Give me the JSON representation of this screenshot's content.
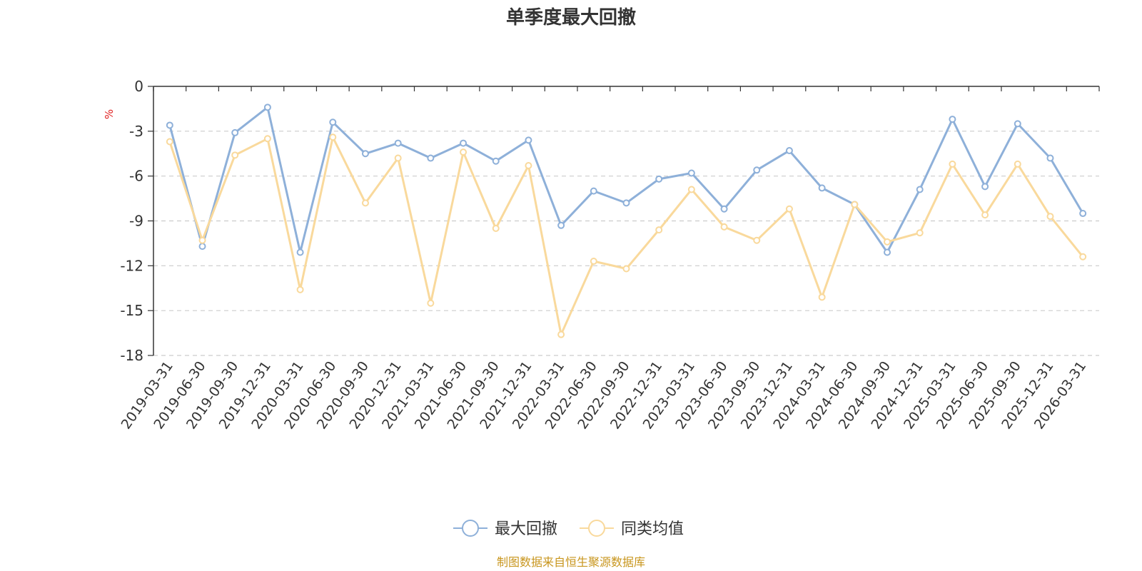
{
  "chart_data": {
    "type": "line",
    "title": "单季度最大回撤",
    "ylabel": "%",
    "ylim": [
      -18,
      0
    ],
    "yticks": [
      0,
      -3,
      -6,
      -9,
      -12,
      -15,
      -18
    ],
    "grid": true,
    "legend_position": "bottom-center",
    "categories": [
      "2019-03-31",
      "2019-06-30",
      "2019-09-30",
      "2019-12-31",
      "2020-03-31",
      "2020-06-30",
      "2020-09-30",
      "2020-12-31",
      "2021-03-31",
      "2021-06-30",
      "2021-09-30",
      "2021-12-31",
      "2022-03-31",
      "2022-06-30",
      "2022-09-30",
      "2022-12-31",
      "2023-03-31",
      "2023-06-30",
      "2023-09-30",
      "2023-12-31",
      "2024-03-31",
      "2024-06-30",
      "2024-09-30",
      "2024-12-31",
      "2025-03-31",
      "2025-06-30",
      "2025-09-30",
      "2025-12-31",
      "2026-03-31"
    ],
    "series": [
      {
        "name": "最大回撤",
        "color": "#8eb0d9",
        "values": [
          -2.6,
          -10.7,
          -3.1,
          -1.4,
          -11.1,
          -2.4,
          -4.5,
          -3.8,
          -4.8,
          -3.8,
          -5.0,
          -3.6,
          -9.3,
          -7.0,
          -7.8,
          -6.2,
          -5.8,
          -8.2,
          -5.6,
          -4.3,
          -6.8,
          -7.9,
          -11.1,
          -6.9,
          -2.2,
          -6.7,
          -2.5,
          -4.8,
          -8.5
        ]
      },
      {
        "name": "同类均值",
        "color": "#f9d99c",
        "values": [
          -3.7,
          -10.3,
          -4.6,
          -3.5,
          -13.6,
          -3.4,
          -7.8,
          -4.8,
          -14.5,
          -4.4,
          -9.5,
          -5.3,
          -16.6,
          -11.7,
          -12.2,
          -9.6,
          -6.9,
          -9.4,
          -10.3,
          -8.2,
          -14.1,
          -7.9,
          -10.4,
          -9.8,
          -5.2,
          -8.6,
          -5.2,
          -8.7,
          -11.4
        ]
      }
    ]
  },
  "footer": {
    "source": "制图数据来自恒生聚源数据库"
  }
}
